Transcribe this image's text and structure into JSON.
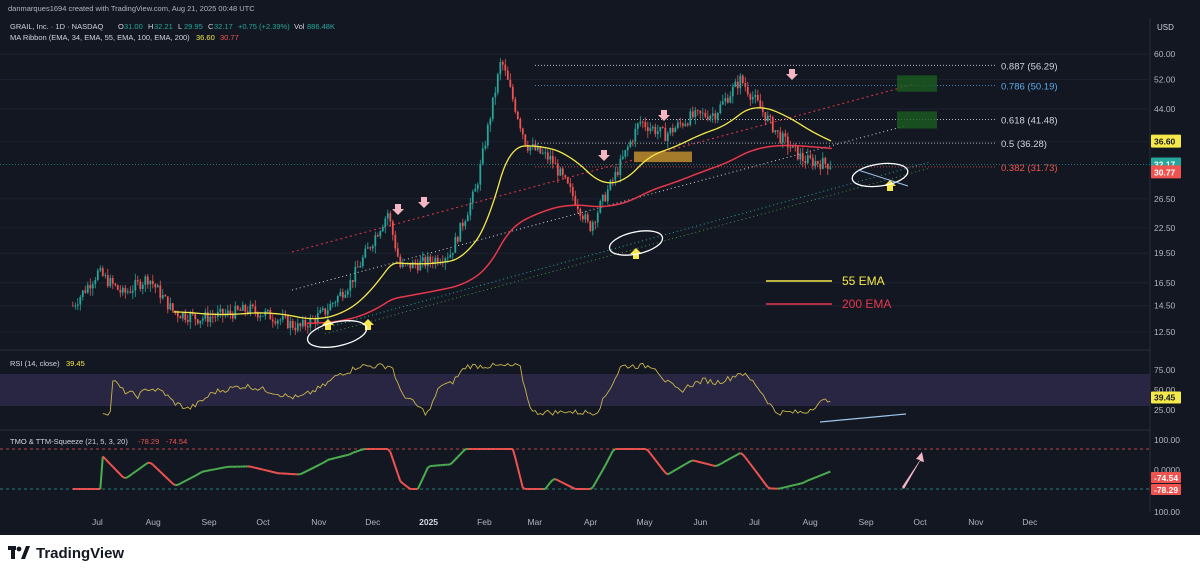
{
  "header": {
    "created_line": "danmarques1694 created with TradingView.com, Aug 21, 2025 00:48 UTC",
    "symbol": "GRAIL, Inc. · 1D · NASDAQ",
    "ohlc": [
      {
        "label": "O",
        "value": "31.00"
      },
      {
        "label": "H",
        "value": "32.21"
      },
      {
        "label": "L",
        "value": "29.95"
      },
      {
        "label": "C",
        "value": "32.17"
      }
    ],
    "change": "+0.75 (+2.39%)",
    "vol_label": "Vol",
    "vol_value": "886.48K",
    "ma_ribbon_label": "MA Ribbon (EMA, 34, EMA, 55, EMA, 100, EMA, 200)",
    "ma_ribbon_v1": "36.60",
    "ma_ribbon_v2": "30.77",
    "currency": "USD"
  },
  "colors": {
    "bg": "#131722",
    "up": "#26a69a",
    "down": "#ef5350",
    "ema55": "#f5e94a",
    "ema200": "#e8374b",
    "rsi": "#c9b54a",
    "grid": "#1e2230",
    "text": "#b2b5be"
  },
  "chart_data": {
    "type": "candlestick",
    "y_axis_ticks": [
      "60.00",
      "52.00",
      "44.00",
      "36.60",
      "32.17",
      "30.77",
      "26.50",
      "22.50",
      "19.50",
      "16.50",
      "14.50",
      "12.50"
    ],
    "x_axis_ticks": [
      "Jul",
      "Aug",
      "Sep",
      "Oct",
      "Nov",
      "Dec",
      "2025",
      "Feb",
      "Mar",
      "Apr",
      "May",
      "Jun",
      "Jul",
      "Aug",
      "Sep",
      "Oct",
      "Nov",
      "Dec"
    ],
    "price_tags": [
      {
        "value": "36.60",
        "color": "#f5e94a"
      },
      {
        "value": "32.17",
        "color": "#26a69a"
      },
      {
        "value": "30.77",
        "color": "#ef5350"
      }
    ],
    "fib_levels": [
      {
        "label": "0.887 (56.29)",
        "color": "#d1d4dc"
      },
      {
        "label": "0.786 (50.19)",
        "color": "#5aa9e6"
      },
      {
        "label": "0.618 (41.48)",
        "color": "#d1d4dc"
      },
      {
        "label": "0.5 (36.28)",
        "color": "#d1d4dc"
      },
      {
        "label": "0.382 (31.73)",
        "color": "#ef5350"
      }
    ],
    "legend": [
      {
        "name": "55 EMA",
        "color": "#f5e94a"
      },
      {
        "name": "200 EMA",
        "color": "#e8374b"
      }
    ],
    "rsi": {
      "label": "RSI (14, close)",
      "value": "39.45",
      "ticks": [
        "75.00",
        "50.00",
        "39.45",
        "25.00"
      ]
    },
    "tmo": {
      "label": "TMO & TTM-Squeeze (21, 5, 3, 20)",
      "v1": "-78.29",
      "v2": "-74.54",
      "ticks": [
        "100.00",
        "0.0000",
        "-74.54",
        "-78.29",
        "100.00"
      ]
    },
    "price_path": [
      [
        "2024-06-24",
        14.5
      ],
      [
        "2024-07-08",
        17.5
      ],
      [
        "2024-07-22",
        15.5
      ],
      [
        "2024-08-05",
        17.0
      ],
      [
        "2024-08-19",
        14.0
      ],
      [
        "2024-09-02",
        13.5
      ],
      [
        "2024-09-16",
        13.8
      ],
      [
        "2024-09-30",
        14.2
      ],
      [
        "2024-10-14",
        13.6
      ],
      [
        "2024-10-28",
        12.8
      ],
      [
        "2024-11-11",
        14.0
      ],
      [
        "2024-11-25",
        16.5
      ],
      [
        "2024-12-09",
        21.5
      ],
      [
        "2024-12-16",
        24.5
      ],
      [
        "2024-12-23",
        18.0
      ],
      [
        "2025-01-06",
        18.5
      ],
      [
        "2025-01-20",
        19.5
      ],
      [
        "2025-02-03",
        28.0
      ],
      [
        "2025-02-17",
        58.0
      ],
      [
        "2025-03-03",
        36.0
      ],
      [
        "2025-03-17",
        33.0
      ],
      [
        "2025-03-31",
        26.0
      ],
      [
        "2025-04-07",
        22.5
      ],
      [
        "2025-04-21",
        30.0
      ],
      [
        "2025-05-05",
        41.0
      ],
      [
        "2025-05-19",
        38.0
      ],
      [
        "2025-06-02",
        42.0
      ],
      [
        "2025-06-16",
        43.0
      ],
      [
        "2025-06-30",
        52.0
      ],
      [
        "2025-07-07",
        47.0
      ],
      [
        "2025-07-21",
        38.0
      ],
      [
        "2025-08-04",
        33.0
      ],
      [
        "2025-08-20",
        32.17
      ]
    ]
  }
}
